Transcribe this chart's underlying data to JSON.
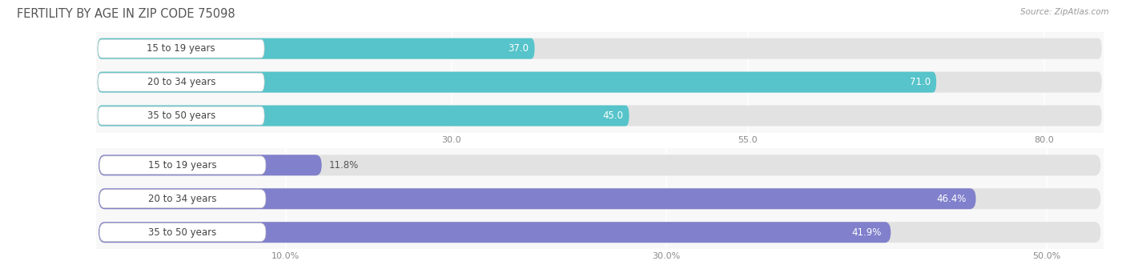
{
  "title": "FERTILITY BY AGE IN ZIP CODE 75098",
  "source": "Source: ZipAtlas.com",
  "top_section": {
    "categories": [
      "15 to 19 years",
      "20 to 34 years",
      "35 to 50 years"
    ],
    "values": [
      37.0,
      71.0,
      45.0
    ],
    "bar_color": "#56C4CA",
    "x_ticks": [
      30.0,
      55.0,
      80.0
    ],
    "x_tick_labels": [
      "30.0",
      "55.0",
      "80.0"
    ],
    "x_min": 0,
    "x_max": 85,
    "is_percent": false
  },
  "bottom_section": {
    "categories": [
      "15 to 19 years",
      "20 to 34 years",
      "35 to 50 years"
    ],
    "values": [
      11.8,
      46.4,
      41.9
    ],
    "bar_color": "#8080CC",
    "x_ticks": [
      10.0,
      30.0,
      50.0
    ],
    "x_tick_labels": [
      "10.0%",
      "30.0%",
      "50.0%"
    ],
    "x_min": 0,
    "x_max": 53,
    "is_percent": true
  },
  "bg_color": "#f2f2f2",
  "bar_bg_color": "#e2e2e2",
  "label_bg_color": "#ffffff",
  "bar_row_bg": "#f8f8f8",
  "grid_color": "#ffffff",
  "label_fontsize": 8.5,
  "tick_fontsize": 8,
  "title_fontsize": 10.5,
  "value_fontsize": 8.5
}
